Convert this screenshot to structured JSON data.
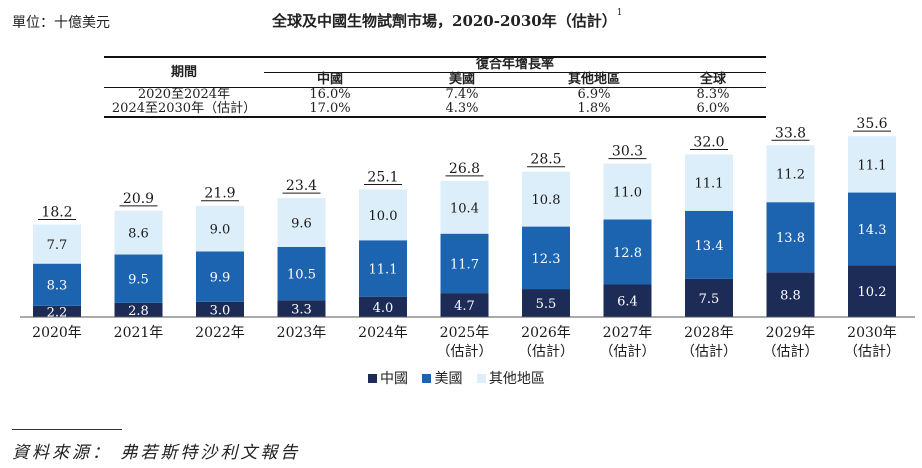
{
  "unit_label": "單位：十億美元",
  "title": "全球及中國生物試劑市場，2020-2030年（估計）",
  "title_note": "1",
  "cagr_table": {
    "period_header": "期間",
    "cagr_header": "復合年增長率",
    "columns": [
      "中國",
      "美國",
      "其他地區",
      "全球"
    ],
    "rows": [
      {
        "period": "2020至2024年",
        "values": [
          "16.0%",
          "7.4%",
          "6.9%",
          "8.3%"
        ]
      },
      {
        "period": "2024至2030年（估計）",
        "values": [
          "17.0%",
          "4.3%",
          "1.8%",
          "6.0%"
        ]
      }
    ]
  },
  "chart_data": {
    "type": "bar",
    "stacked": true,
    "title": "全球及中國生物試劑市場，2020-2030年（估計）",
    "ylabel": "十億美元",
    "categories": [
      "2020年",
      "2021年",
      "2022年",
      "2023年",
      "2024年",
      "2025年",
      "2026年",
      "2027年",
      "2028年",
      "2029年",
      "2030年"
    ],
    "category_notes": [
      "",
      "",
      "",
      "",
      "",
      "（估計）",
      "（估計）",
      "（估計）",
      "（估計）",
      "（估計）",
      "（估計）"
    ],
    "series": [
      {
        "name": "中國",
        "color": "#1d2b57",
        "values": [
          2.2,
          2.8,
          3.0,
          3.3,
          4.0,
          4.7,
          5.5,
          6.4,
          7.5,
          8.8,
          10.2
        ]
      },
      {
        "name": "美國",
        "color": "#1c64b0",
        "values": [
          8.3,
          9.5,
          9.9,
          10.5,
          11.1,
          11.7,
          12.3,
          12.8,
          13.4,
          13.8,
          14.3
        ]
      },
      {
        "name": "其他地區",
        "color": "#dceefa",
        "values": [
          7.7,
          8.6,
          9.0,
          9.6,
          10.0,
          10.4,
          10.8,
          11.0,
          11.1,
          11.2,
          11.1
        ]
      }
    ],
    "totals": [
      18.2,
      20.9,
      21.9,
      23.4,
      25.1,
      26.8,
      28.5,
      30.3,
      32.0,
      33.8,
      35.6
    ],
    "legend_position": "bottom-center"
  },
  "source": "資料來源： 弗若斯特沙利文報告"
}
